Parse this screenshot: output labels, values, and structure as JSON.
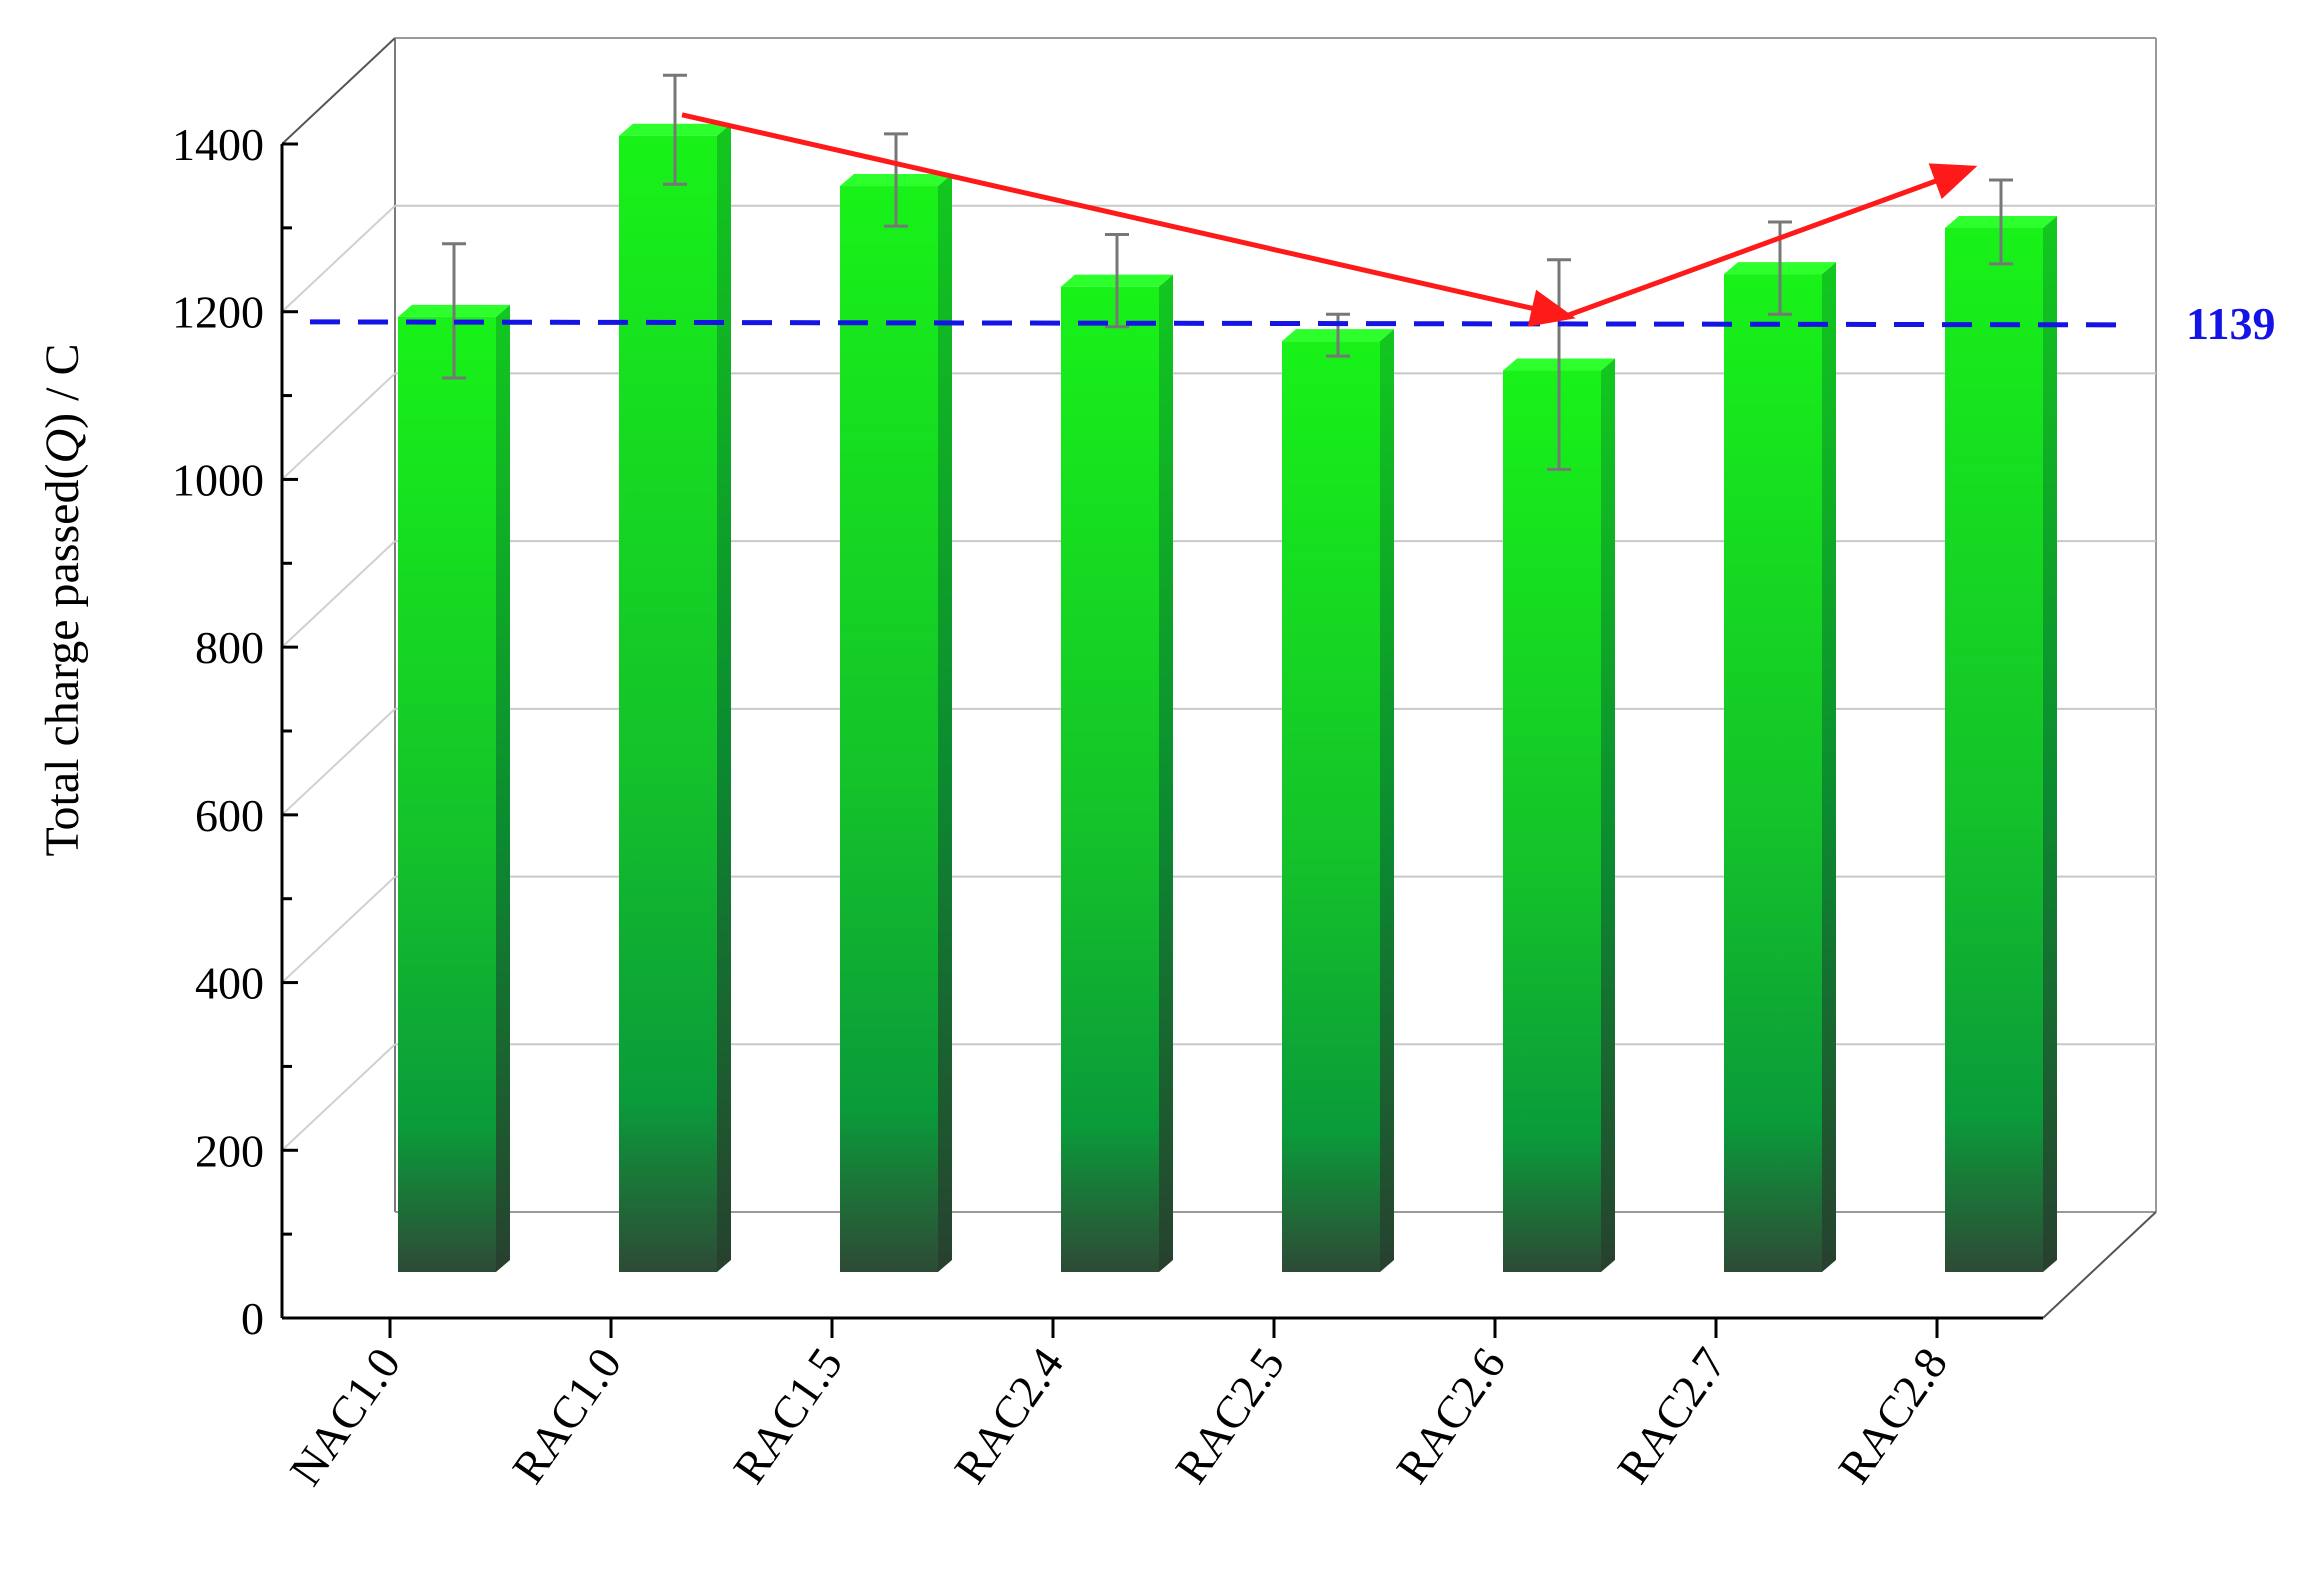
{
  "chart_data": {
    "type": "bar",
    "title": "",
    "xlabel": "",
    "ylabel": "Total charge passed(Q) / C",
    "ylabel_parts": {
      "prefix": "Total charge passed(",
      "symbol": "Q",
      "suffix": ") / C"
    },
    "ylim": [
      0,
      1400
    ],
    "yticks": [
      "0",
      "200",
      "400",
      "600",
      "800",
      "1000",
      "1200",
      "1400"
    ],
    "categories": [
      "NAC1.0",
      "RAC1.0",
      "RAC1.5",
      "RAC2.4",
      "RAC2.5",
      "RAC2.6",
      "RAC2.7",
      "RAC2.8"
    ],
    "values": [
      1139,
      1355,
      1295,
      1175,
      1110,
      1075,
      1190,
      1245
    ],
    "errors": [
      80,
      65,
      55,
      55,
      25,
      125,
      55,
      50
    ],
    "reference_line": {
      "value": 1139,
      "label": "1139",
      "color": "#1414e6",
      "style": "dashed"
    },
    "trend_arrows": [
      {
        "from": [
          1,
          1380
        ],
        "to": [
          5,
          1140
        ]
      },
      {
        "from": [
          5,
          1140
        ],
        "to": [
          7,
          1315
        ]
      }
    ],
    "grid": true,
    "three_d": true,
    "colors": {
      "bar_top": "#18f218",
      "bar_mid": "#0a9b3a",
      "bar_bottom": "#2e4a36",
      "arrow": "#ff1a1a",
      "error_bar": "#777777",
      "frame": "#999999",
      "axis": "#000000"
    }
  }
}
